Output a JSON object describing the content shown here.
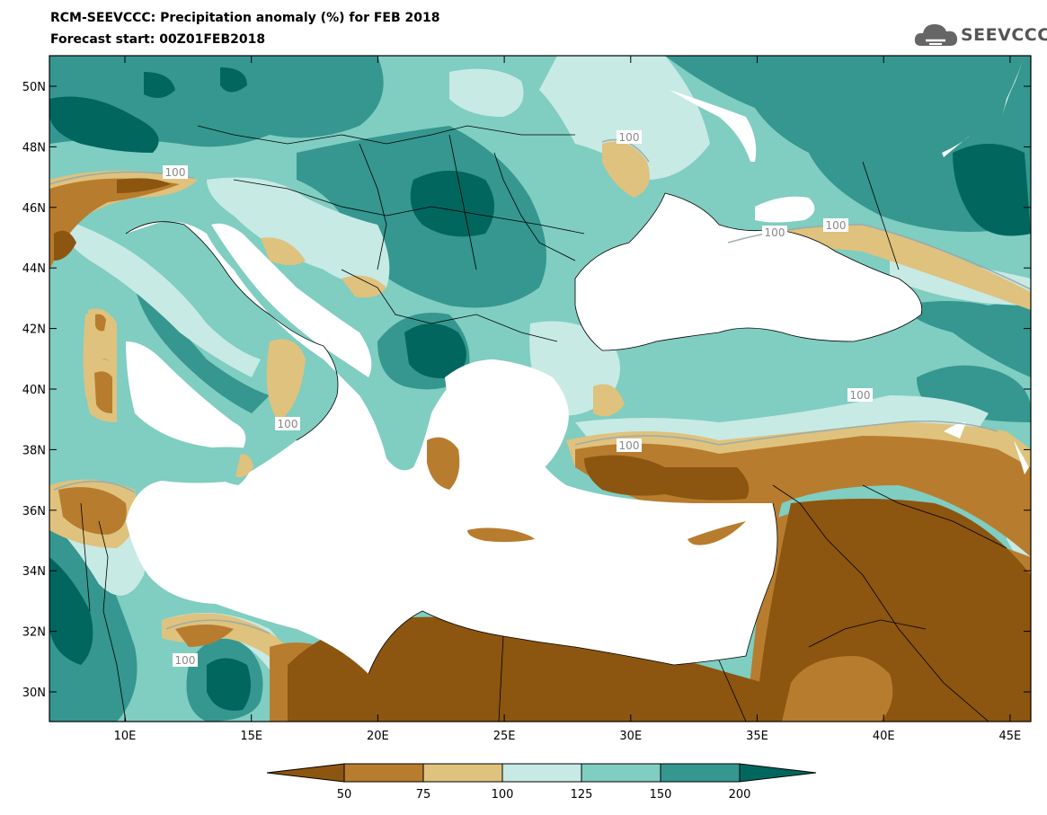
{
  "title_line1": "RCM-SEEVCCC: Precipitation anomaly (%) for FEB 2018",
  "title_line2": "Forecast start: 00Z01FEB2018",
  "logo_text": "SEEVCCC",
  "map": {
    "lat_ticks": [
      "50N",
      "48N",
      "46N",
      "44N",
      "42N",
      "40N",
      "38N",
      "36N",
      "34N",
      "32N",
      "30N"
    ],
    "lon_ticks": [
      "10E",
      "15E",
      "20E",
      "25E",
      "30E",
      "35E",
      "40E",
      "45E"
    ],
    "contour_labels": [
      "100",
      "100",
      "100",
      "100",
      "100",
      "100",
      "100",
      "100"
    ]
  },
  "colors": {
    "lt50": "#8c5510",
    "c50_75": "#b87c2e",
    "c75_100": "#dfc27d",
    "c100_125": "#c7eae5",
    "c125_150": "#80cdc1",
    "c150_200": "#35978f",
    "gt200": "#01665e",
    "sea": "#ffffff"
  },
  "colorbar": {
    "ticks": [
      "50",
      "75",
      "100",
      "125",
      "150",
      "200"
    ]
  }
}
